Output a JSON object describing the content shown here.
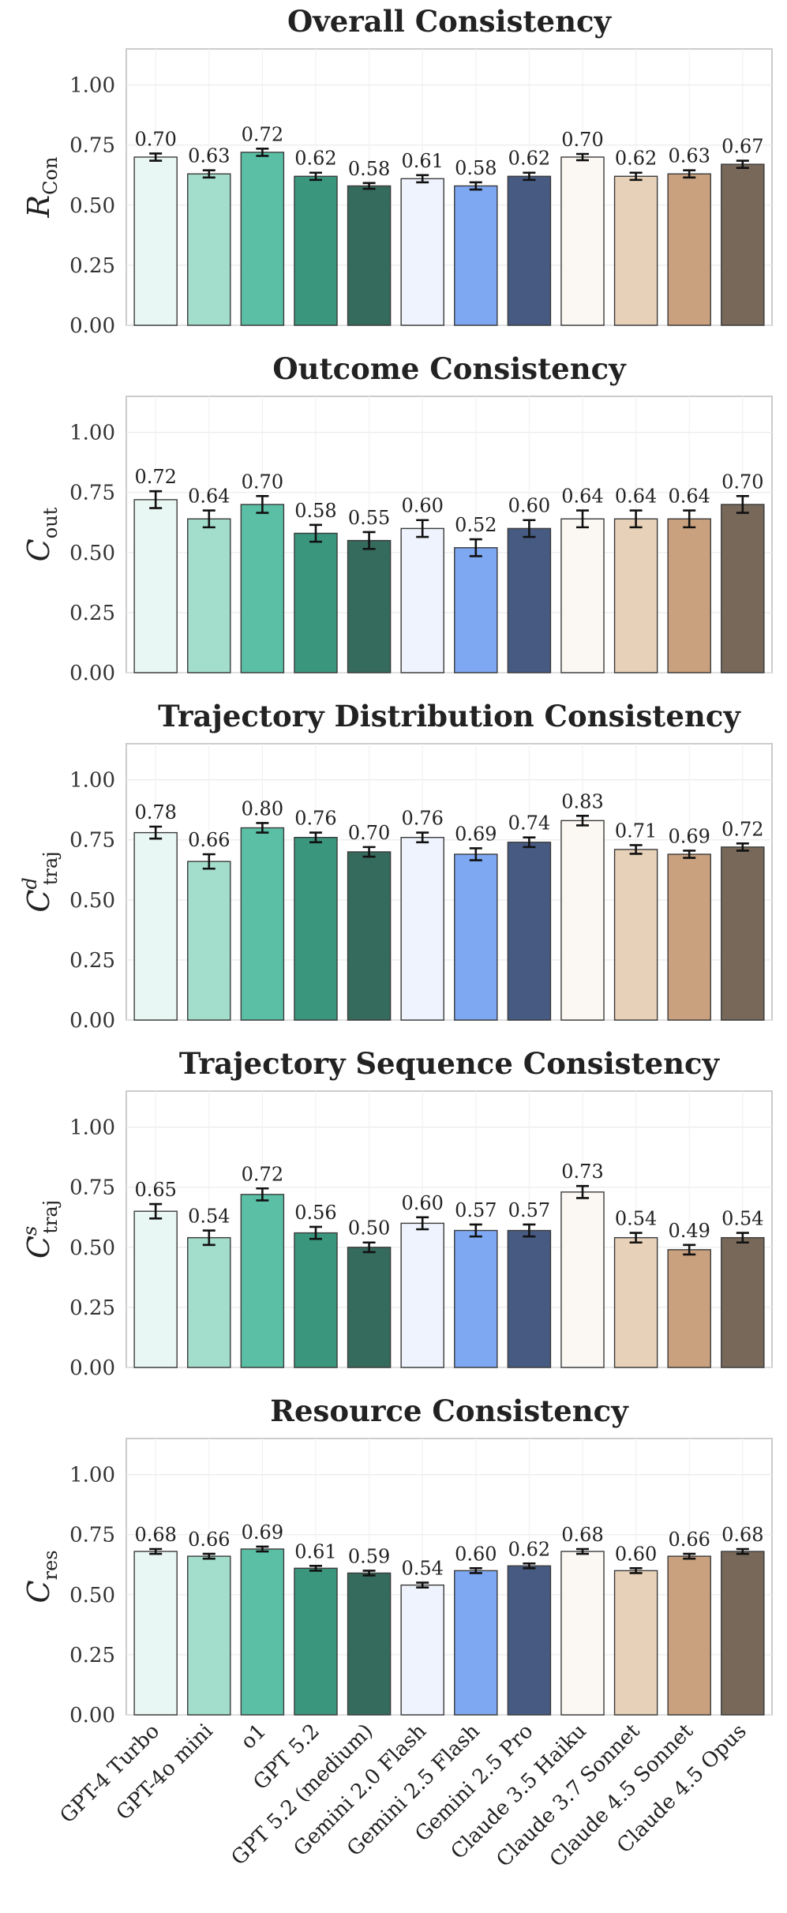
{
  "colors": [
    "#e8f7f3",
    "#a3ddcc",
    "#5bbfa6",
    "#3a977e",
    "#356b5c",
    "#eef3fd",
    "#7ea8f2",
    "#465a82",
    "#fbf8f3",
    "#e7d1b8",
    "#c9a17e",
    "#77685a"
  ],
  "chart_data": [
    {
      "type": "bar",
      "title": "Overall Consistency",
      "ylabel": {
        "main": "R",
        "sub": "Con",
        "sup": ""
      },
      "ylim": [
        0,
        1.15
      ],
      "yticks": [
        "0.00",
        "0.25",
        "0.50",
        "0.75",
        "1.00"
      ],
      "categories": [
        "GPT-4 Turbo",
        "GPT-4o mini",
        "o1",
        "GPT 5.2",
        "GPT 5.2 (medium)",
        "Gemini 2.0 Flash",
        "Gemini 2.5 Flash",
        "Gemini 2.5 Pro",
        "Claude 3.5 Haiku",
        "Claude 3.7 Sonnet",
        "Claude 4.5 Sonnet",
        "Claude 4.5 Opus"
      ],
      "values": [
        0.7,
        0.63,
        0.72,
        0.62,
        0.58,
        0.61,
        0.58,
        0.62,
        0.7,
        0.62,
        0.63,
        0.67
      ],
      "value_labels": [
        "0.70",
        "0.63",
        "0.72",
        "0.62",
        "0.58",
        "0.61",
        "0.58",
        "0.62",
        "0.70",
        "0.62",
        "0.63",
        "0.67"
      ],
      "errors": [
        0.015,
        0.015,
        0.015,
        0.015,
        0.012,
        0.015,
        0.015,
        0.015,
        0.013,
        0.015,
        0.015,
        0.015
      ]
    },
    {
      "type": "bar",
      "title": "Outcome Consistency",
      "ylabel": {
        "main": "C",
        "sub": "out",
        "sup": ""
      },
      "ylim": [
        0,
        1.15
      ],
      "yticks": [
        "0.00",
        "0.25",
        "0.50",
        "0.75",
        "1.00"
      ],
      "categories": [
        "GPT-4 Turbo",
        "GPT-4o mini",
        "o1",
        "GPT 5.2",
        "GPT 5.2 (medium)",
        "Gemini 2.0 Flash",
        "Gemini 2.5 Flash",
        "Gemini 2.5 Pro",
        "Claude 3.5 Haiku",
        "Claude 3.7 Sonnet",
        "Claude 4.5 Sonnet",
        "Claude 4.5 Opus"
      ],
      "values": [
        0.72,
        0.64,
        0.7,
        0.58,
        0.55,
        0.6,
        0.52,
        0.6,
        0.64,
        0.64,
        0.64,
        0.7
      ],
      "value_labels": [
        "0.72",
        "0.64",
        "0.70",
        "0.58",
        "0.55",
        "0.60",
        "0.52",
        "0.60",
        "0.64",
        "0.64",
        "0.64",
        "0.70"
      ],
      "errors": [
        0.035,
        0.035,
        0.035,
        0.035,
        0.035,
        0.035,
        0.035,
        0.035,
        0.035,
        0.035,
        0.035,
        0.035
      ]
    },
    {
      "type": "bar",
      "title": "Trajectory Distribution Consistency",
      "ylabel": {
        "main": "C",
        "sub": "traj",
        "sup": "d"
      },
      "ylim": [
        0,
        1.15
      ],
      "yticks": [
        "0.00",
        "0.25",
        "0.50",
        "0.75",
        "1.00"
      ],
      "categories": [
        "GPT-4 Turbo",
        "GPT-4o mini",
        "o1",
        "GPT 5.2",
        "GPT 5.2 (medium)",
        "Gemini 2.0 Flash",
        "Gemini 2.5 Flash",
        "Gemini 2.5 Pro",
        "Claude 3.5 Haiku",
        "Claude 3.7 Sonnet",
        "Claude 4.5 Sonnet",
        "Claude 4.5 Opus"
      ],
      "values": [
        0.78,
        0.66,
        0.8,
        0.76,
        0.7,
        0.76,
        0.69,
        0.74,
        0.83,
        0.71,
        0.69,
        0.72
      ],
      "value_labels": [
        "0.78",
        "0.66",
        "0.80",
        "0.76",
        "0.70",
        "0.76",
        "0.69",
        "0.74",
        "0.83",
        "0.71",
        "0.69",
        "0.72"
      ],
      "errors": [
        0.025,
        0.03,
        0.02,
        0.02,
        0.02,
        0.02,
        0.025,
        0.02,
        0.02,
        0.018,
        0.015,
        0.015
      ]
    },
    {
      "type": "bar",
      "title": "Trajectory Sequence Consistency",
      "ylabel": {
        "main": "C",
        "sub": "traj",
        "sup": "s"
      },
      "ylim": [
        0,
        1.15
      ],
      "yticks": [
        "0.00",
        "0.25",
        "0.50",
        "0.75",
        "1.00"
      ],
      "categories": [
        "GPT-4 Turbo",
        "GPT-4o mini",
        "o1",
        "GPT 5.2",
        "GPT 5.2 (medium)",
        "Gemini 2.0 Flash",
        "Gemini 2.5 Flash",
        "Gemini 2.5 Pro",
        "Claude 3.5 Haiku",
        "Claude 3.7 Sonnet",
        "Claude 4.5 Sonnet",
        "Claude 4.5 Opus"
      ],
      "values": [
        0.65,
        0.54,
        0.72,
        0.56,
        0.5,
        0.6,
        0.57,
        0.57,
        0.73,
        0.54,
        0.49,
        0.54
      ],
      "value_labels": [
        "0.65",
        "0.54",
        "0.72",
        "0.56",
        "0.50",
        "0.60",
        "0.57",
        "0.57",
        "0.73",
        "0.54",
        "0.49",
        "0.54"
      ],
      "errors": [
        0.03,
        0.03,
        0.025,
        0.025,
        0.02,
        0.025,
        0.025,
        0.025,
        0.025,
        0.02,
        0.02,
        0.02
      ]
    },
    {
      "type": "bar",
      "title": "Resource Consistency",
      "ylabel": {
        "main": "C",
        "sub": "res",
        "sup": ""
      },
      "ylim": [
        0,
        1.15
      ],
      "yticks": [
        "0.00",
        "0.25",
        "0.50",
        "0.75",
        "1.00"
      ],
      "categories": [
        "GPT-4 Turbo",
        "GPT-4o mini",
        "o1",
        "GPT 5.2",
        "GPT 5.2 (medium)",
        "Gemini 2.0 Flash",
        "Gemini 2.5 Flash",
        "Gemini 2.5 Pro",
        "Claude 3.5 Haiku",
        "Claude 3.7 Sonnet",
        "Claude 4.5 Sonnet",
        "Claude 4.5 Opus"
      ],
      "values": [
        0.68,
        0.66,
        0.69,
        0.61,
        0.59,
        0.54,
        0.6,
        0.62,
        0.68,
        0.6,
        0.66,
        0.68
      ],
      "value_labels": [
        "0.68",
        "0.66",
        "0.69",
        "0.61",
        "0.59",
        "0.54",
        "0.60",
        "0.62",
        "0.68",
        "0.60",
        "0.66",
        "0.68"
      ],
      "errors": [
        0.01,
        0.01,
        0.01,
        0.01,
        0.01,
        0.01,
        0.01,
        0.01,
        0.01,
        0.01,
        0.01,
        0.01
      ]
    }
  ]
}
